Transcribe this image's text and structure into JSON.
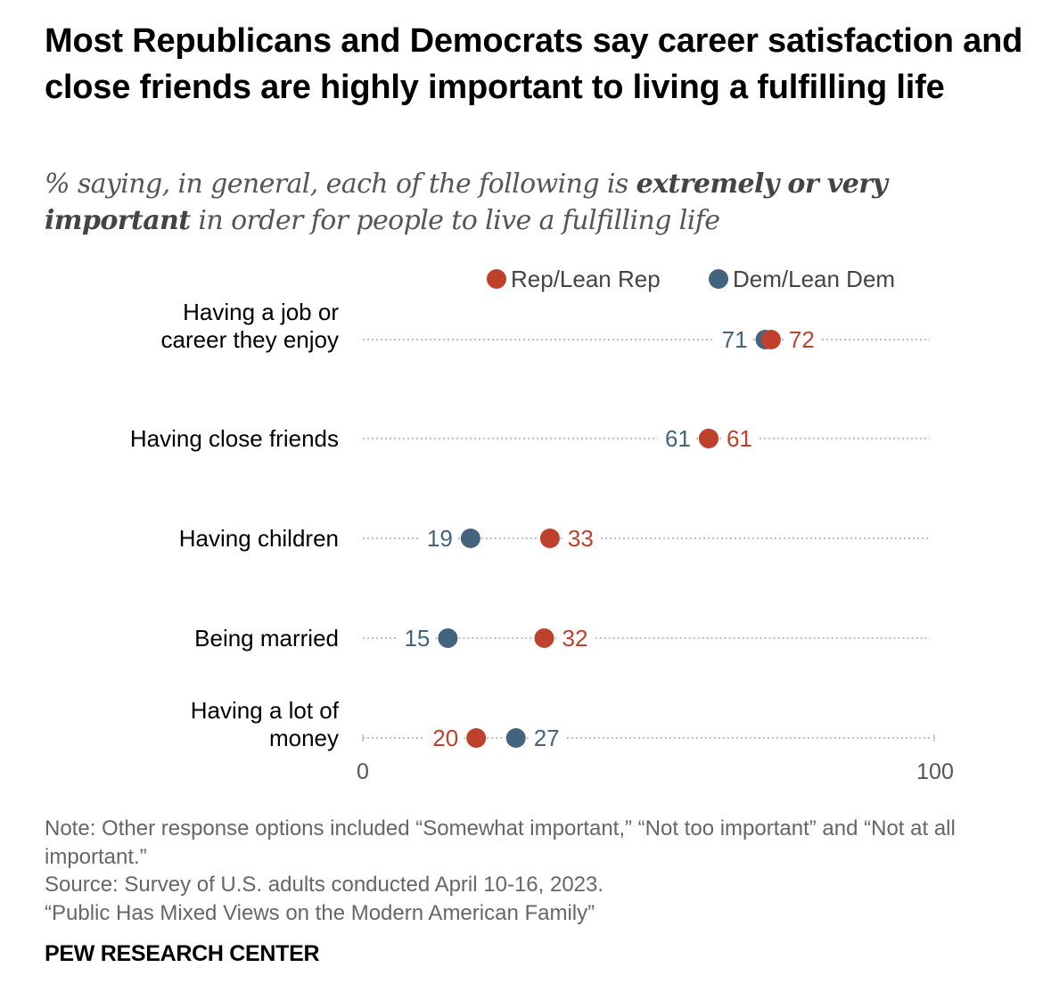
{
  "title": "Most Republicans and Democrats say career satisfaction and close friends are highly important to living a fulfilling life",
  "subtitle": {
    "prefix": "% saying, in general, each of the following is ",
    "emphasis": "extremely or very important",
    "suffix": " in order for people to live a fulfilling life"
  },
  "colors": {
    "rep": "#C0412B",
    "dem": "#44637E",
    "label": "#000000",
    "dots": "#bdbdbd"
  },
  "chart_data": {
    "type": "dot",
    "categories": [
      [
        "Having a job or",
        "career they enjoy"
      ],
      [
        "Having close friends"
      ],
      [
        "Having children"
      ],
      [
        "Being married"
      ],
      [
        "Having a lot of",
        "money"
      ]
    ],
    "series": [
      {
        "name": "Rep/Lean Rep",
        "values": [
          72,
          61,
          33,
          32,
          20
        ]
      },
      {
        "name": "Dem/Lean Dem",
        "values": [
          71,
          61,
          19,
          15,
          27
        ]
      }
    ],
    "xlim": [
      0,
      100
    ],
    "xticks": [
      "0",
      "100"
    ],
    "legend": "top",
    "grid": false
  },
  "notes": {
    "note": "Note: Other response options included “Somewhat important,” “Not too important” and “Not at all important.”",
    "source": "Source: Survey of U.S. adults conducted April 10-16, 2023.",
    "report": "“Public Has Mixed Views on the Modern American Family”"
  },
  "brand": "PEW RESEARCH CENTER"
}
